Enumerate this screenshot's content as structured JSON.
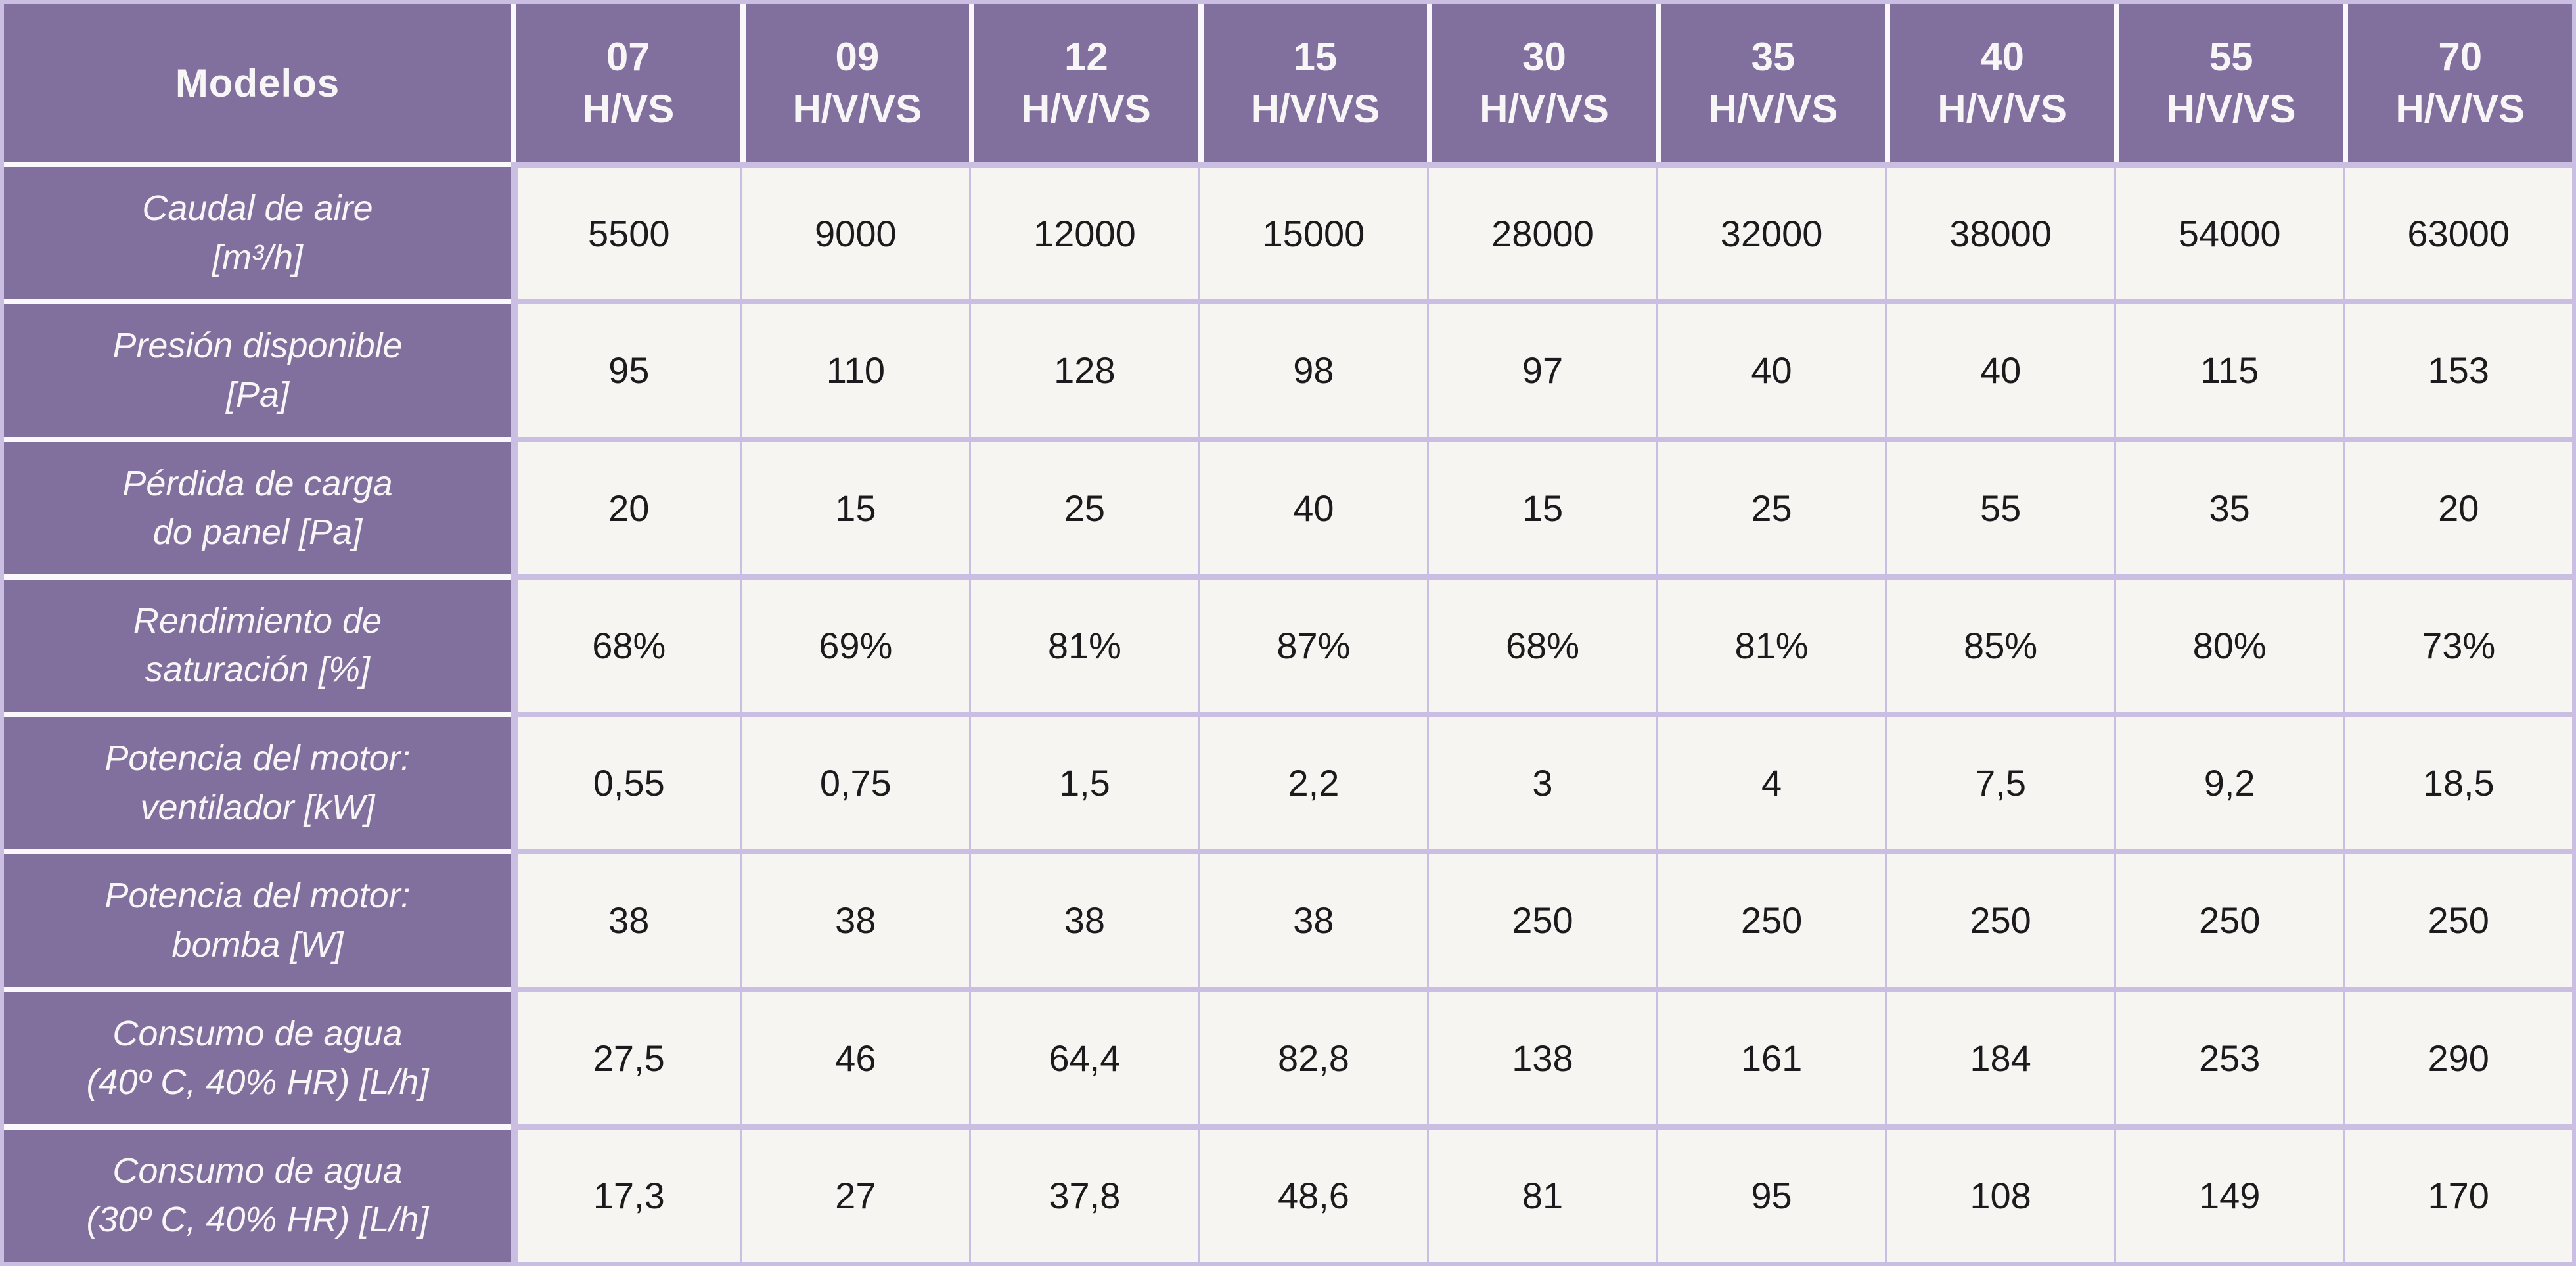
{
  "table": {
    "corner_label": "Modelos",
    "columns": [
      {
        "model": "07",
        "variant": "H/VS"
      },
      {
        "model": "09",
        "variant": "H/V/VS"
      },
      {
        "model": "12",
        "variant": "H/V/VS"
      },
      {
        "model": "15",
        "variant": "H/V/VS"
      },
      {
        "model": "30",
        "variant": "H/V/VS"
      },
      {
        "model": "35",
        "variant": "H/V/VS"
      },
      {
        "model": "40",
        "variant": "H/V/VS"
      },
      {
        "model": "55",
        "variant": "H/V/VS"
      },
      {
        "model": "70",
        "variant": "H/V/VS"
      }
    ],
    "rows": [
      {
        "label_line1": "Caudal de aire",
        "label_line2": "[m³/h]",
        "values": [
          "5500",
          "9000",
          "12000",
          "15000",
          "28000",
          "32000",
          "38000",
          "54000",
          "63000"
        ]
      },
      {
        "label_line1": "Presión disponible",
        "label_line2": "[Pa]",
        "values": [
          "95",
          "110",
          "128",
          "98",
          "97",
          "40",
          "40",
          "115",
          "153"
        ]
      },
      {
        "label_line1": "Pérdida de carga",
        "label_line2": "do panel [Pa]",
        "values": [
          "20",
          "15",
          "25",
          "40",
          "15",
          "25",
          "55",
          "35",
          "20"
        ]
      },
      {
        "label_line1": "Rendimiento de",
        "label_line2": "saturación [%]",
        "values": [
          "68%",
          "69%",
          "81%",
          "87%",
          "68%",
          "81%",
          "85%",
          "80%",
          "73%"
        ]
      },
      {
        "label_line1": "Potencia del motor:",
        "label_line2": "ventilador [kW]",
        "values": [
          "0,55",
          "0,75",
          "1,5",
          "2,2",
          "3",
          "4",
          "7,5",
          "9,2",
          "18,5"
        ]
      },
      {
        "label_line1": "Potencia del motor:",
        "label_line2": "bomba [W]",
        "values": [
          "38",
          "38",
          "38",
          "38",
          "250",
          "250",
          "250",
          "250",
          "250"
        ]
      },
      {
        "label_line1": "Consumo de agua",
        "label_line2": "(40º C, 40% HR) [L/h]",
        "values": [
          "27,5",
          "46",
          "64,4",
          "82,8",
          "138",
          "161",
          "184",
          "253",
          "290"
        ]
      },
      {
        "label_line1": "Consumo de agua",
        "label_line2": "(30º C, 40% HR) [L/h]",
        "values": [
          "17,3",
          "27",
          "37,8",
          "48,6",
          "81",
          "95",
          "108",
          "149",
          "170"
        ]
      }
    ]
  },
  "colors": {
    "header_purple": "#81709D",
    "separator_lavender": "#CABEE2",
    "separator_white": "#FAF8FA",
    "cell_background": "#F7F5F2",
    "header_text": "#F8F5F7",
    "data_text": "#1D1A1D"
  }
}
